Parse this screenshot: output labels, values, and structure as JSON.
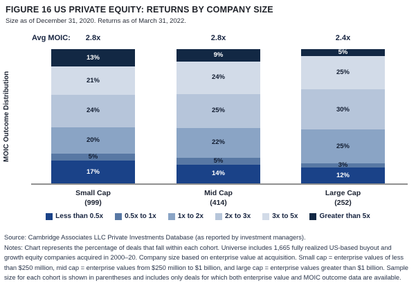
{
  "header": {
    "title": "FIGURE 16 US PRIVATE EQUITY: RETURNS BY COMPANY SIZE",
    "subtitle": "Size as of December 31, 2020. Returns as of March 31, 2022."
  },
  "chart_data": {
    "type": "bar",
    "stacked": true,
    "title": "FIGURE 16 US PRIVATE EQUITY: RETURNS BY COMPANY SIZE",
    "ylabel": "MOIC Outcome Distribution",
    "xlabel": "",
    "ylim": [
      0,
      100
    ],
    "grid": false,
    "legend_position": "bottom",
    "avg_moic_label": "Avg MOIC:",
    "categories": [
      {
        "label": "Small Cap",
        "count_label": "(999)",
        "avg_moic": "2.8x"
      },
      {
        "label": "Mid Cap",
        "count_label": "(414)",
        "avg_moic": "2.8x"
      },
      {
        "label": "Large Cap",
        "count_label": "(252)",
        "avg_moic": "2.4x"
      }
    ],
    "series": [
      {
        "name": "Less than 0.5x",
        "values": [
          17,
          14,
          12
        ],
        "color": "#1A4288",
        "label_color": "#FFFFFF"
      },
      {
        "name": "0.5x to 1x",
        "values": [
          5,
          5,
          3
        ],
        "color": "#5878A4",
        "label_color": "#111C30"
      },
      {
        "name": "1x to 2x",
        "values": [
          20,
          22,
          25
        ],
        "color": "#8AA4C5",
        "label_color": "#111C30"
      },
      {
        "name": "2x to 3x",
        "values": [
          24,
          25,
          30
        ],
        "color": "#B6C5DA",
        "label_color": "#111C30"
      },
      {
        "name": "3x to 5x",
        "values": [
          21,
          24,
          25
        ],
        "color": "#D2DBE8",
        "label_color": "#111C30"
      },
      {
        "name": "Greater than 5x",
        "values": [
          13,
          9,
          5
        ],
        "color": "#122844",
        "label_color": "#FFFFFF"
      }
    ],
    "value_suffix": "%"
  },
  "footnotes": {
    "source": "Source: Cambridge Associates LLC Private Investments Database (as reported by investment managers).",
    "notes": "Notes: Chart represents the percentage of deals that fall within each cohort. Universe includes 1,665 fully realized US-based buyout and growth equity companies acquired in 2000–20. Company size based on enterprise value at acquisition. Small cap = enterprise values of less than $250 million, mid cap = enterprise values from $250 million to $1 billion, and large cap = enterprise values greater than $1 billion. Sample size for each cohort is shown in parentheses and includes only deals for which both enterprise value and MOIC outcome data are available."
  }
}
